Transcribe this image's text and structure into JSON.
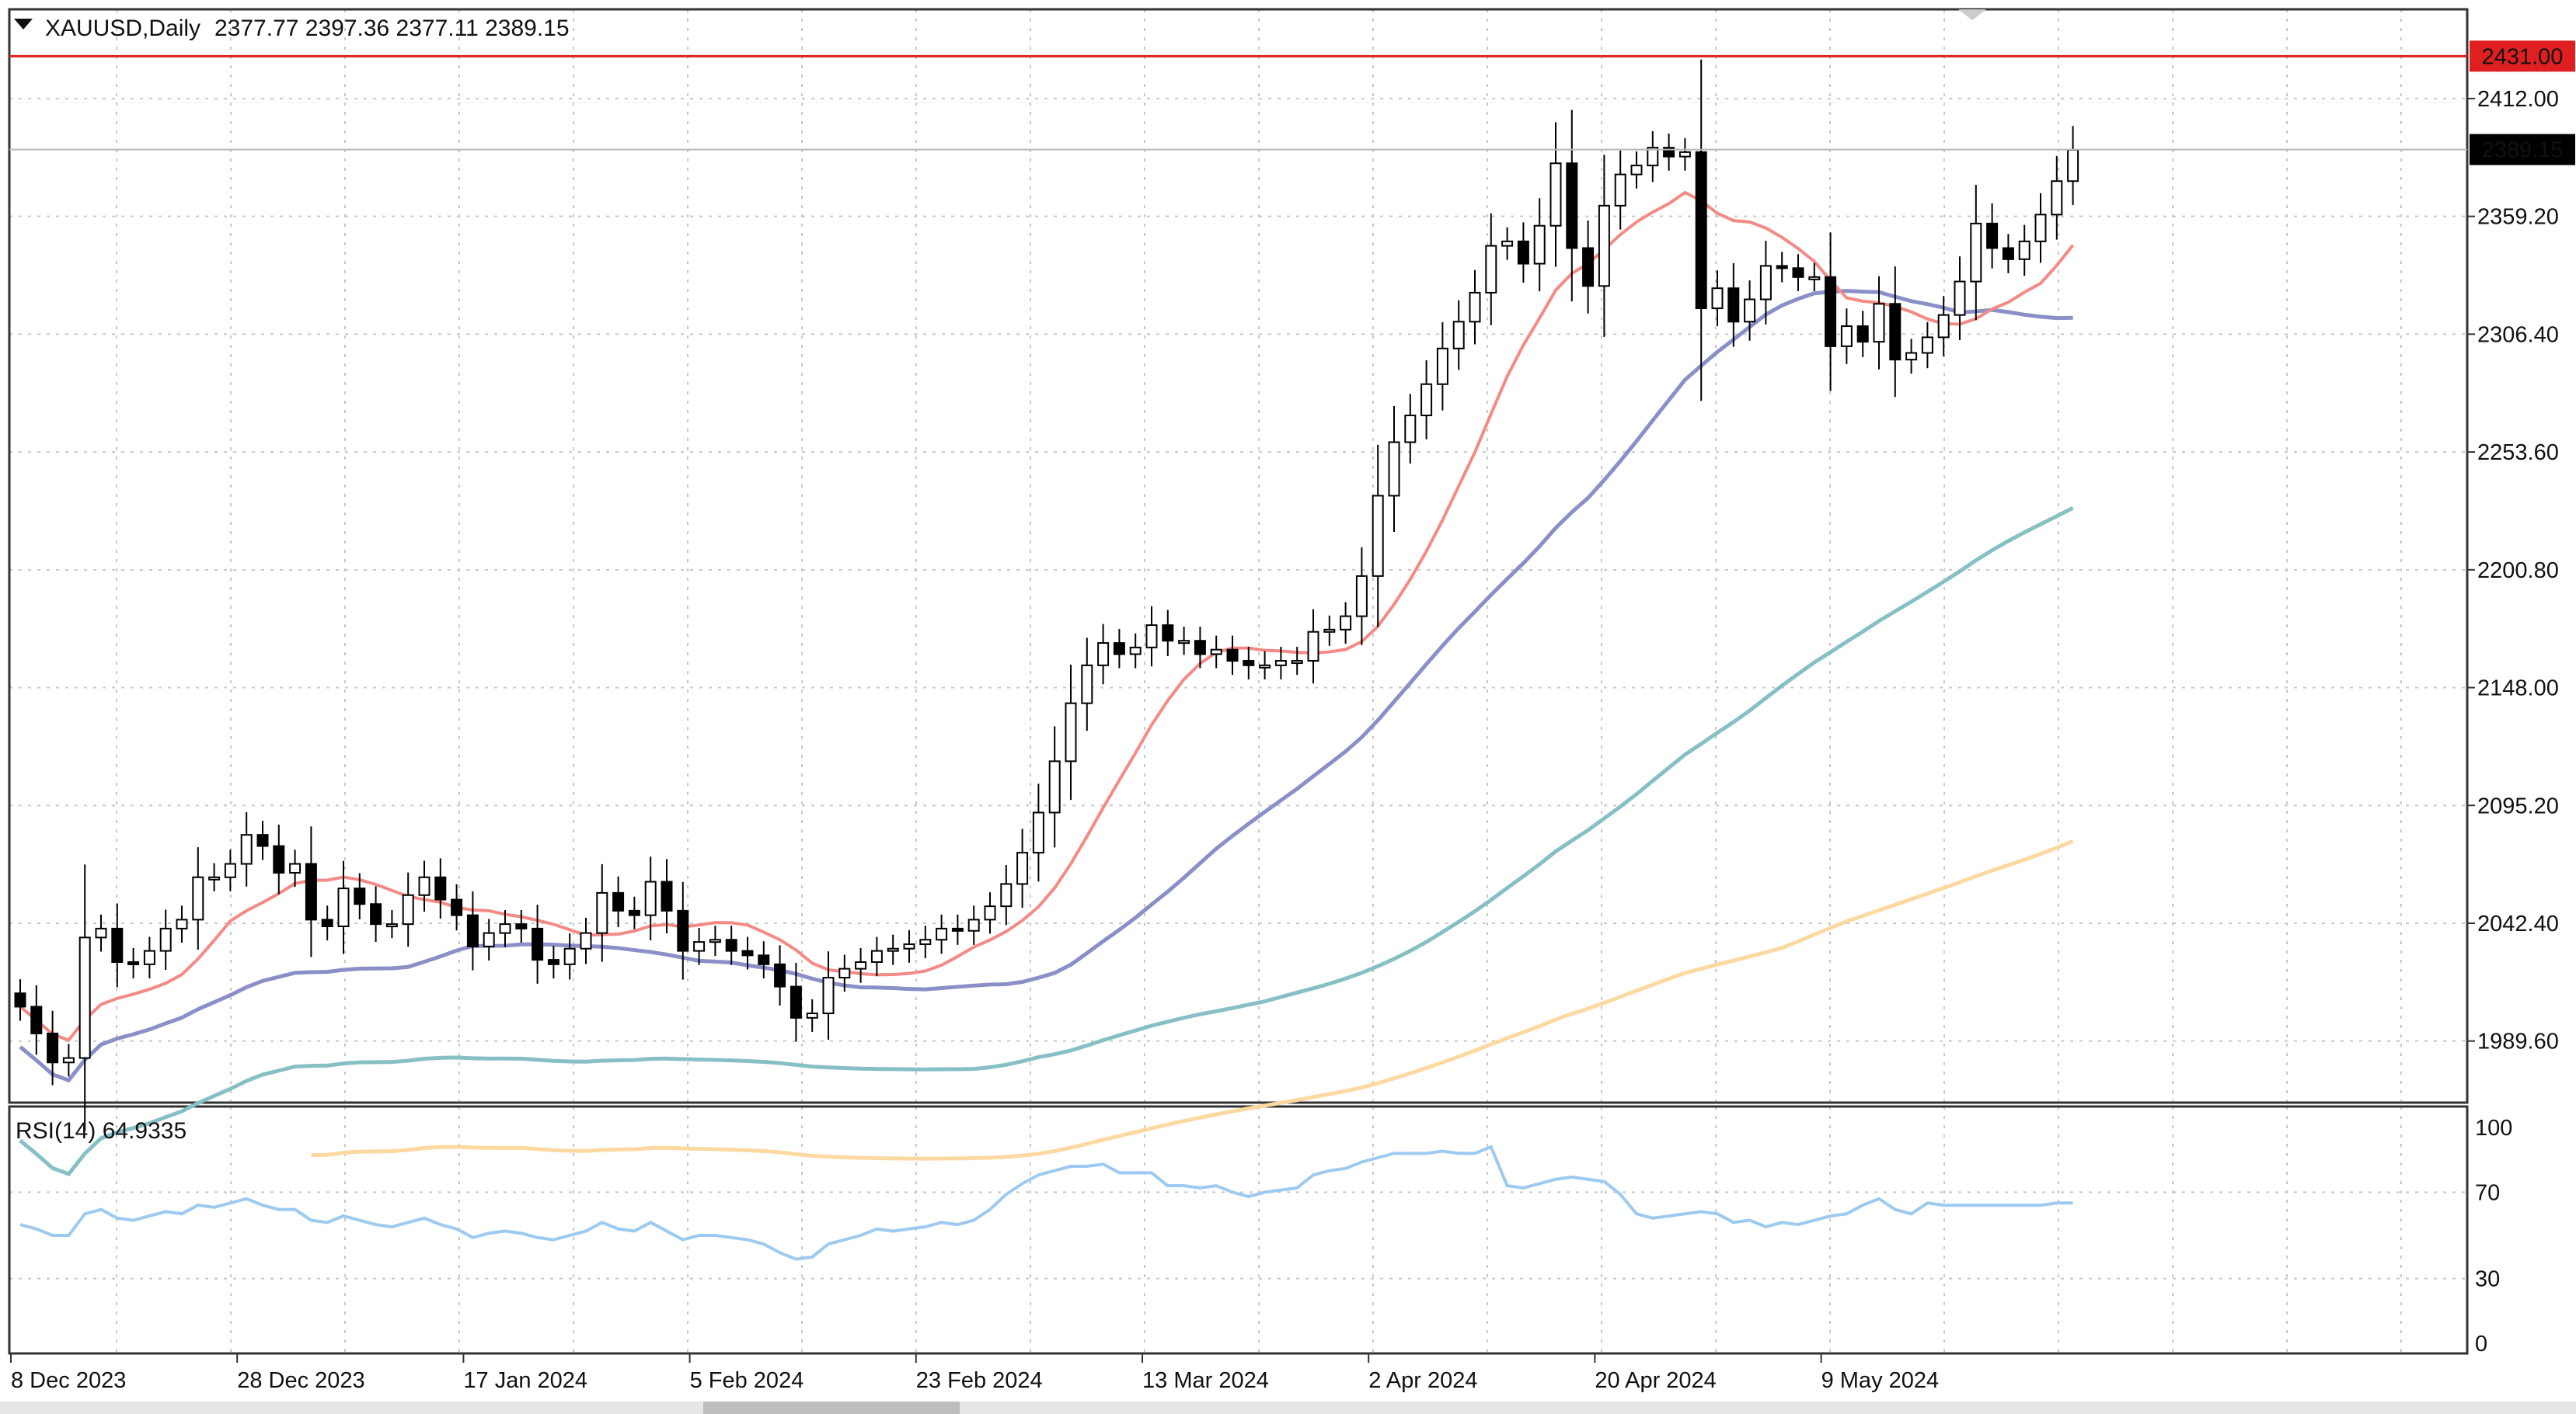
{
  "header": {
    "symbol": "XAUUSD,Daily",
    "ohlc": "2377.77 2397.36 2377.11 2389.15",
    "menu_icon": "triangle-down-icon"
  },
  "price_panel": {
    "ylim": [
      1962,
      2452
    ],
    "hline_value": 2431.0,
    "hline_label": "2431.00",
    "current_value": 2389.15,
    "current_label": "2389.15",
    "y_ticks": [
      {
        "value": 2412.0,
        "label": "2412.00"
      },
      {
        "value": 2359.2,
        "label": "2359.20"
      },
      {
        "value": 2306.4,
        "label": "2306.40"
      },
      {
        "value": 2253.6,
        "label": "2253.60"
      },
      {
        "value": 2200.8,
        "label": "2200.80"
      },
      {
        "value": 2148.0,
        "label": "2148.00"
      },
      {
        "value": 2095.2,
        "label": "2095.20"
      },
      {
        "value": 2042.4,
        "label": "2042.40"
      },
      {
        "value": 1989.6,
        "label": "1989.60"
      }
    ]
  },
  "rsi_panel": {
    "title": "RSI(14) 64.9335",
    "ylim": [
      0,
      100
    ],
    "y_ticks": [
      {
        "value": 100,
        "label": "100"
      },
      {
        "value": 70,
        "label": "70"
      },
      {
        "value": 30,
        "label": "30"
      },
      {
        "value": 0,
        "label": "0"
      }
    ]
  },
  "x_axis": {
    "labels": [
      {
        "bar": 0,
        "label": "8 Dec 2023"
      },
      {
        "bar": 14,
        "label": "28 Dec 2023"
      },
      {
        "bar": 28,
        "label": "17 Jan 2024"
      },
      {
        "bar": 42,
        "label": "5 Feb 2024"
      },
      {
        "bar": 56,
        "label": "23 Feb 2024"
      },
      {
        "bar": 70,
        "label": "13 Mar 2024"
      },
      {
        "bar": 84,
        "label": "2 Apr 2024"
      },
      {
        "bar": 98,
        "label": "20 Apr 2024"
      },
      {
        "bar": 112,
        "label": "9 May 2024"
      }
    ]
  },
  "colors": {
    "up_candle": "#ffffff",
    "down_candle": "#000000",
    "ma_fast": "#f48a86",
    "ma_mid": "#8a8fc8",
    "ma_slow": "#86c0c4",
    "ma_long": "#fcd9a0",
    "rsi": "#9ccaf0",
    "hline": "#e02020"
  },
  "chart_data": {
    "type": "candlestick",
    "title": "XAUUSD,Daily",
    "series_close": [
      2005,
      1993,
      1980,
      1982,
      2036,
      2040,
      2025,
      2024,
      2030,
      2040,
      2044,
      2063,
      2063,
      2069,
      2082,
      2077,
      2065,
      2069,
      2044,
      2041,
      2058,
      2051,
      2042,
      2042,
      2055,
      2063,
      2053,
      2046,
      2032,
      2038,
      2042,
      2040,
      2026,
      2024,
      2031,
      2038,
      2056,
      2048,
      2046,
      2061,
      2048,
      2030,
      2034,
      2035,
      2030,
      2028,
      2024,
      2014,
      2000,
      2002,
      2018,
      2022,
      2025,
      2030,
      2031,
      2033,
      2035,
      2040,
      2039,
      2044,
      2050,
      2060,
      2074,
      2092,
      2115,
      2141,
      2158,
      2168,
      2163,
      2166,
      2176,
      2169,
      2169,
      2163,
      2165,
      2160,
      2158,
      2158,
      2160,
      2160,
      2173,
      2174,
      2180,
      2198,
      2234,
      2258,
      2270,
      2284,
      2300,
      2312,
      2325,
      2346,
      2348,
      2338,
      2355,
      2383,
      2345,
      2328,
      2364,
      2378,
      2382,
      2390,
      2386,
      2388,
      2318,
      2327,
      2312,
      2322,
      2337,
      2336,
      2332,
      2332,
      2301,
      2310,
      2303,
      2320,
      2295,
      2298,
      2305,
      2315,
      2330,
      2356,
      2345,
      2340,
      2348,
      2360,
      2375,
      2389
    ],
    "rsi_values": [
      55,
      53,
      50,
      50,
      60,
      62,
      58,
      57,
      59,
      61,
      60,
      64,
      63,
      65,
      67,
      64,
      62,
      62,
      57,
      56,
      59,
      57,
      55,
      54,
      56,
      58,
      55,
      53,
      49,
      51,
      52,
      51,
      49,
      48,
      50,
      52,
      56,
      53,
      52,
      56,
      52,
      48,
      50,
      50,
      49,
      48,
      46,
      42,
      39,
      40,
      46,
      48,
      50,
      53,
      52,
      53,
      54,
      56,
      55,
      57,
      62,
      69,
      74,
      78,
      80,
      82,
      82,
      83,
      79,
      79,
      79,
      73,
      73,
      72,
      73,
      70,
      68,
      70,
      71,
      72,
      78,
      80,
      81,
      84,
      86,
      88,
      88,
      88,
      89,
      88,
      88,
      91,
      73,
      72,
      74,
      76,
      77,
      76,
      75,
      69,
      60,
      58,
      59,
      60,
      61,
      60,
      56,
      57,
      54,
      56,
      55,
      57,
      59,
      60,
      64,
      67,
      62,
      60,
      65,
      64,
      64,
      64,
      64,
      64,
      64,
      64,
      65,
      65
    ]
  }
}
